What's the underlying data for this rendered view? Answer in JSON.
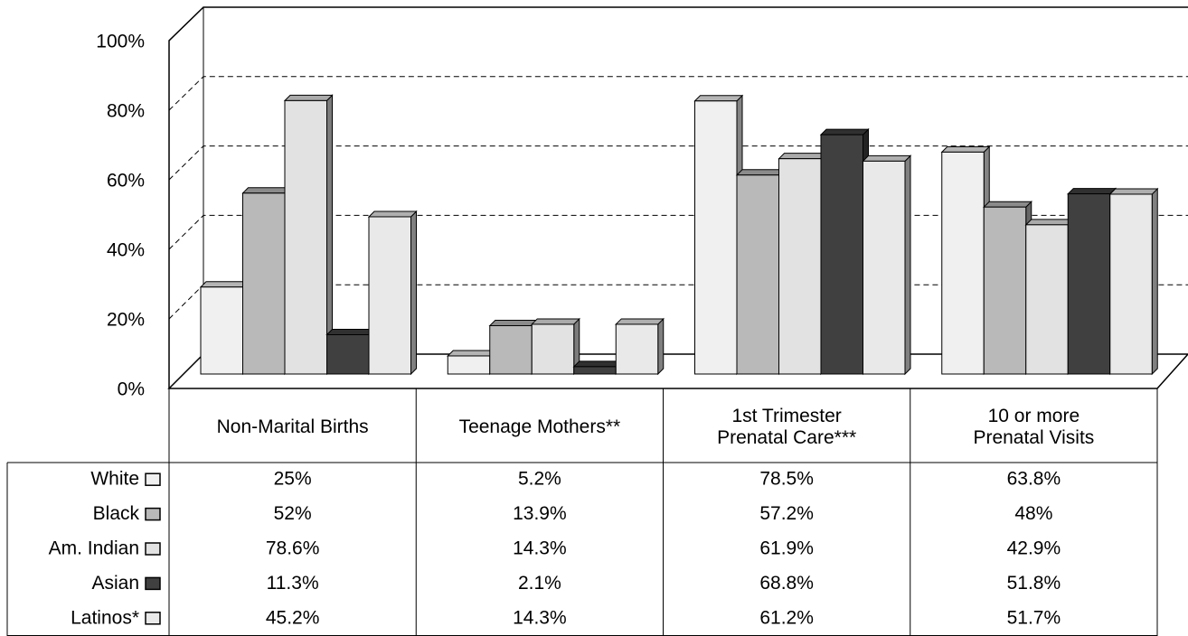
{
  "chart_data": {
    "type": "bar3d",
    "categories": [
      "Non-Marital Births",
      "Teenage Mothers**",
      "1st Trimester Prenatal Care***",
      "10 or more Prenatal Visits"
    ],
    "series": [
      {
        "name": "White",
        "color": "#f0f0f0",
        "values": [
          25,
          5.2,
          78.5,
          63.8
        ],
        "value_labels": [
          "25%",
          "5.2%",
          "78.5%",
          "63.8%"
        ]
      },
      {
        "name": "Black",
        "color": "#b9b9b9",
        "values": [
          52,
          13.9,
          57.2,
          48
        ],
        "value_labels": [
          "52%",
          "13.9%",
          "57.2%",
          "48%"
        ]
      },
      {
        "name": "Am. Indian",
        "color": "#e2e2e2",
        "values": [
          78.6,
          14.3,
          61.9,
          42.9
        ],
        "value_labels": [
          "78.6%",
          "14.3%",
          "61.9%",
          "42.9%"
        ]
      },
      {
        "name": "Asian",
        "color": "#404040",
        "values": [
          11.3,
          2.1,
          68.8,
          51.8
        ],
        "value_labels": [
          "11.3%",
          "2.1%",
          "68.8%",
          "51.8%"
        ]
      },
      {
        "name": "Latinos*",
        "color": "#e9e9e9",
        "values": [
          45.2,
          14.3,
          61.2,
          51.7
        ],
        "value_labels": [
          "45.2%",
          "14.3%",
          "61.2%",
          "51.7%"
        ]
      }
    ],
    "ylim": [
      0,
      100
    ],
    "yticks": [
      {
        "value": 0,
        "label": "0%"
      },
      {
        "value": 20,
        "label": "20%"
      },
      {
        "value": 40,
        "label": "40%"
      },
      {
        "value": 60,
        "label": "60%"
      },
      {
        "value": 80,
        "label": "80%"
      },
      {
        "value": 100,
        "label": "100%"
      }
    ],
    "grid": true
  }
}
